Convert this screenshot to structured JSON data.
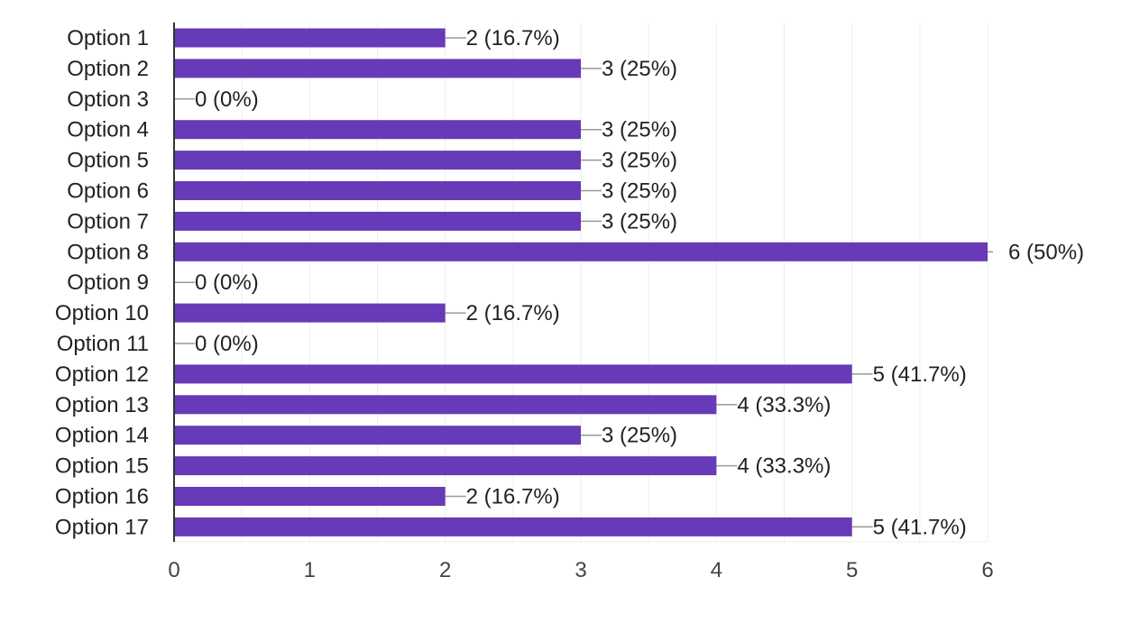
{
  "chart_data": {
    "type": "bar",
    "orientation": "horizontal",
    "categories": [
      "Option 1",
      "Option 2",
      "Option 3",
      "Option 4",
      "Option 5",
      "Option 6",
      "Option 7",
      "Option 8",
      "Option 9",
      "Option 10",
      "Option 11",
      "Option 12",
      "Option 13",
      "Option 14",
      "Option 15",
      "Option 16",
      "Option 17"
    ],
    "values": [
      2,
      3,
      0,
      3,
      3,
      3,
      3,
      6,
      0,
      2,
      0,
      5,
      4,
      3,
      4,
      2,
      5
    ],
    "data_labels": [
      "2 (16.7%)",
      "3 (25%)",
      "0 (0%)",
      "3 (25%)",
      "3 (25%)",
      "3 (25%)",
      "3 (25%)",
      "6 (50%)",
      "0 (0%)",
      "2 (16.7%)",
      "0 (0%)",
      "5 (41.7%)",
      "4 (33.3%)",
      "3 (25%)",
      "4 (33.3%)",
      "2 (16.7%)",
      "5 (41.7%)"
    ],
    "x_ticks": [
      "0",
      "1",
      "2",
      "3",
      "4",
      "5",
      "6"
    ],
    "xlim": [
      0,
      6
    ],
    "title": "",
    "xlabel": "",
    "ylabel": "",
    "grid": true,
    "legend": "none",
    "colors": {
      "bar": "#673ab7",
      "grid": "#eeeeee",
      "axis": "#333333",
      "leader": "#999999",
      "text": "#222222",
      "tick_text": "#444444"
    }
  }
}
